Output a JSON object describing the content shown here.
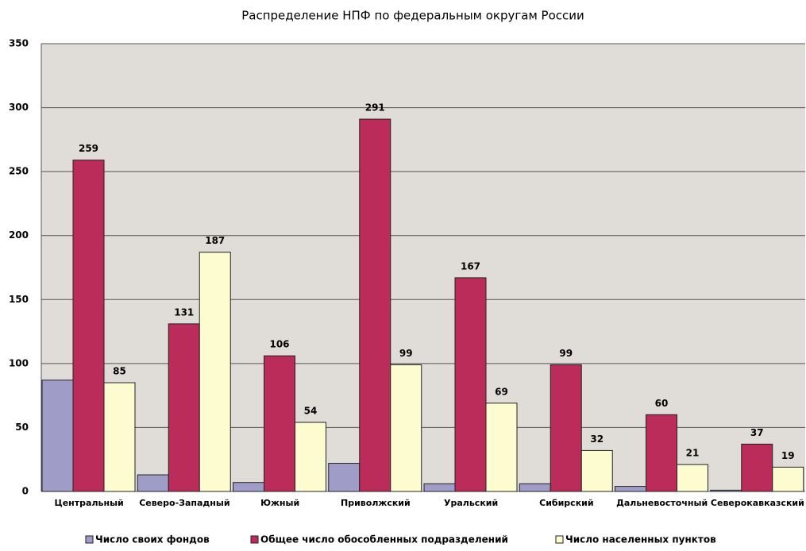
{
  "chart_data": {
    "type": "bar",
    "title": "Распределение НПФ по федеральным округам России",
    "categories": [
      "Центральный",
      "Северо-Западный",
      "Южный",
      "Приволжский",
      "Уральский",
      "Сибирский",
      "Дальневосточный",
      "Северокавказский"
    ],
    "series": [
      {
        "name": "Число своих фондов",
        "color": "#9f9cc8",
        "show_labels": false,
        "values": [
          87,
          13,
          7,
          22,
          6,
          6,
          4,
          1
        ]
      },
      {
        "name": "Общее число обособленных подразделений",
        "color": "#bc2c5b",
        "show_labels": true,
        "values": [
          259,
          131,
          106,
          291,
          167,
          99,
          60,
          37
        ]
      },
      {
        "name": "Число населенных пунктов",
        "color": "#fdfbd0",
        "show_labels": true,
        "values": [
          85,
          187,
          54,
          99,
          69,
          32,
          21,
          19
        ]
      }
    ],
    "ylim": [
      0,
      350
    ],
    "yticks": [
      0,
      50,
      100,
      150,
      200,
      250,
      300,
      350
    ],
    "grid": true,
    "legend": "bottom"
  }
}
